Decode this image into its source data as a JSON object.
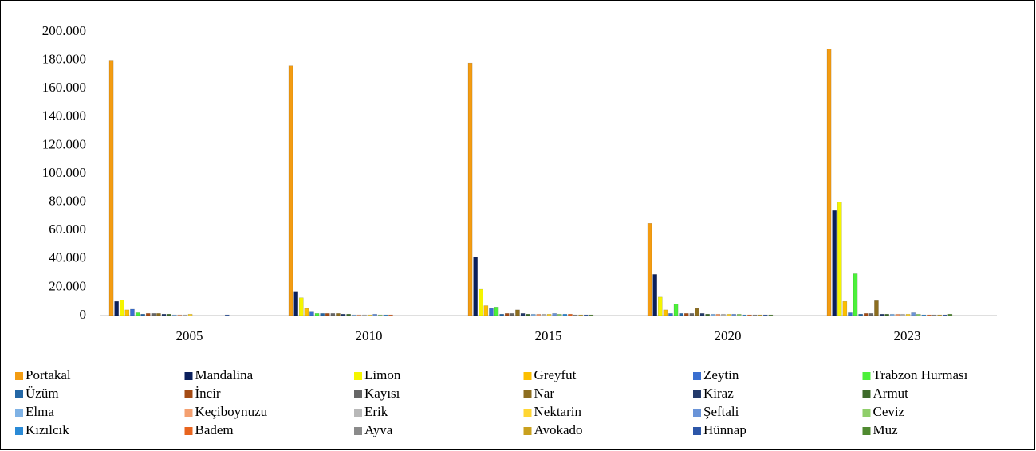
{
  "chart_data": {
    "type": "bar",
    "categories": [
      "2005",
      "2010",
      "2015",
      "2020",
      "2023"
    ],
    "ylim": [
      0,
      200000
    ],
    "yticks": [
      0,
      {
        "value": 20000,
        "label": "20.000"
      },
      {
        "value": 40000,
        "label": "40.000"
      },
      {
        "value": 60000,
        "label": "60.000"
      },
      {
        "value": 80000,
        "label": "80.000"
      },
      {
        "value": 100000,
        "label": "100.000"
      },
      {
        "value": 120000,
        "label": "120.000"
      },
      {
        "value": 140000,
        "label": "140.000"
      },
      {
        "value": 160000,
        "label": "160.000"
      },
      {
        "value": 180000,
        "label": "180.000"
      },
      {
        "value": 200000,
        "label": "200.000"
      }
    ],
    "series": [
      {
        "name": "Portakal",
        "color": "#f39c12",
        "values": [
          180000,
          176000,
          178000,
          65000,
          188000
        ]
      },
      {
        "name": "Mandalina",
        "color": "#0a1f5c",
        "values": [
          10000,
          17000,
          41000,
          29000,
          74000
        ]
      },
      {
        "name": "Limon",
        "color": "#f5f500",
        "values": [
          11000,
          12500,
          18500,
          13000,
          80000
        ]
      },
      {
        "name": "Greyfut",
        "color": "#fcbf00",
        "values": [
          4000,
          5000,
          7000,
          4000,
          10000
        ]
      },
      {
        "name": "Zeytin",
        "color": "#3a6fd0",
        "values": [
          4500,
          3000,
          5000,
          1500,
          2000
        ]
      },
      {
        "name": "Trabzon Hurması",
        "color": "#4cf03a",
        "values": [
          2000,
          1500,
          6000,
          8000,
          29500
        ]
      },
      {
        "name": "Üzüm",
        "color": "#2467a5",
        "values": [
          1000,
          1500,
          1000,
          1500,
          1000
        ]
      },
      {
        "name": "İncir",
        "color": "#a44b14",
        "values": [
          1500,
          1500,
          1500,
          1500,
          1500
        ]
      },
      {
        "name": "Kayısı",
        "color": "#666666",
        "values": [
          1500,
          1500,
          1500,
          1500,
          1500
        ]
      },
      {
        "name": "Nar",
        "color": "#8c6d1f",
        "values": [
          1500,
          1500,
          4000,
          5000,
          10500
        ]
      },
      {
        "name": "Kiraz",
        "color": "#233a6b",
        "values": [
          1000,
          1000,
          1500,
          1500,
          1000
        ]
      },
      {
        "name": "Armut",
        "color": "#3d6b2a",
        "values": [
          1000,
          1000,
          1000,
          1000,
          1000
        ]
      },
      {
        "name": "Elma",
        "color": "#7fb2e5",
        "values": [
          500,
          500,
          1000,
          1000,
          1000
        ]
      },
      {
        "name": "Keçiboynuzu",
        "color": "#f4a070",
        "values": [
          500,
          500,
          1000,
          1000,
          1000
        ]
      },
      {
        "name": "Erik",
        "color": "#b8b8b8",
        "values": [
          500,
          500,
          1000,
          1000,
          1000
        ]
      },
      {
        "name": "Nektarin",
        "color": "#ffd633",
        "values": [
          1000,
          500,
          1000,
          1000,
          1000
        ]
      },
      {
        "name": "Şeftali",
        "color": "#6a94d8",
        "values": [
          0,
          1000,
          1500,
          1000,
          2000
        ]
      },
      {
        "name": "Ceviz",
        "color": "#8fce6a",
        "values": [
          0,
          500,
          1000,
          1000,
          1000
        ]
      },
      {
        "name": "Kızılcık",
        "color": "#2a8ad6",
        "values": [
          0,
          500,
          1000,
          500,
          500
        ]
      },
      {
        "name": "Badem",
        "color": "#e8641e",
        "values": [
          0,
          500,
          1000,
          500,
          500
        ]
      },
      {
        "name": "Ayva",
        "color": "#8a8a8a",
        "values": [
          0,
          0,
          500,
          500,
          500
        ]
      },
      {
        "name": "Avokado",
        "color": "#c9a01e",
        "values": [
          0,
          0,
          500,
          500,
          500
        ]
      },
      {
        "name": "Hünnap",
        "color": "#2c56a8",
        "values": [
          500,
          0,
          500,
          500,
          500
        ]
      },
      {
        "name": "Muz",
        "color": "#4f8a30",
        "values": [
          0,
          0,
          500,
          500,
          1000
        ]
      }
    ]
  }
}
